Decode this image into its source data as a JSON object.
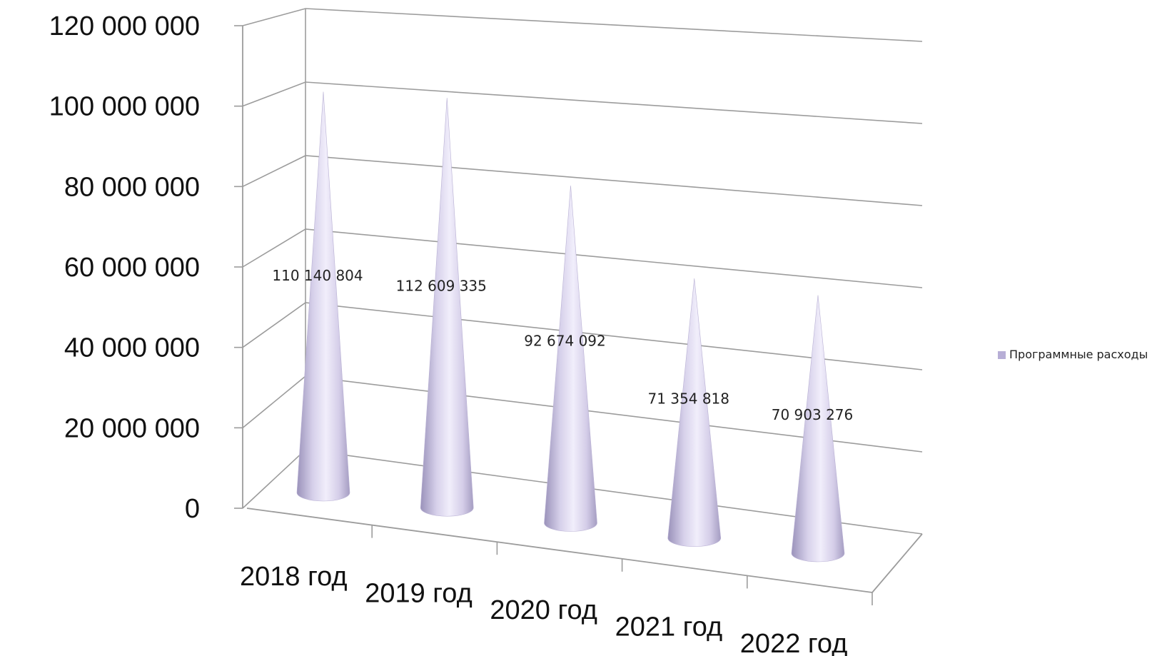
{
  "chart_data": {
    "type": "bar",
    "style": "3d-cone",
    "categories": [
      "2018 год",
      "2019 год",
      "2020 год",
      "2021 год",
      "2022 год"
    ],
    "series": [
      {
        "name": "Программные расходы",
        "values": [
          110140804,
          112609335,
          92674092,
          71354818,
          70903276
        ],
        "value_labels": [
          "110 140 804",
          "112 609 335",
          "92 674 092",
          "71 354 818",
          "70 903 276"
        ],
        "color": "#d8d2ec"
      }
    ],
    "yticks": [
      "0",
      "20 000 000",
      "40 000 000",
      "60 000 000",
      "80 000 000",
      "100 000 000",
      "120 000 000"
    ],
    "ylim": [
      0,
      120000000
    ],
    "grid": true,
    "legend": "right",
    "colors": {
      "cone_light": "#efebfa",
      "cone_mid": "#d9d3ec",
      "cone_dark": "#a79fc4",
      "grid": "#9c9c9c"
    }
  }
}
